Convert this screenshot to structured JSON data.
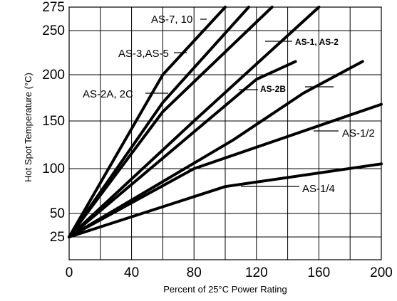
{
  "chart_data": {
    "type": "line",
    "xlabel": "Percent of 25°C Power Rating",
    "ylabel": "Hot Spot Temperature (°C)",
    "xlim": [
      0,
      200
    ],
    "ylim": [
      0,
      275
    ],
    "x_ticks": [
      "0",
      "40",
      "80",
      "120",
      "160",
      "200"
    ],
    "y_ticks": [
      "25",
      "50",
      "100",
      "150",
      "200",
      "250",
      "275"
    ],
    "grid": true,
    "series": [
      {
        "name": "AS-7, 10",
        "x": [
          0,
          60,
          100
        ],
        "y": [
          25,
          200,
          275
        ]
      },
      {
        "name": "AS-3, AS-5",
        "x": [
          0,
          60,
          115
        ],
        "y": [
          25,
          170,
          275
        ]
      },
      {
        "name": "AS-2A, 2C",
        "x": [
          0,
          60,
          130
        ],
        "y": [
          25,
          160,
          275
        ]
      },
      {
        "name": "AS-1, AS-2",
        "x": [
          0,
          80,
          160
        ],
        "y": [
          25,
          150,
          275
        ]
      },
      {
        "name": "AS-2B",
        "x": [
          0,
          120,
          145
        ],
        "y": [
          25,
          195,
          215
        ]
      },
      {
        "name": "AS-2B",
        "x": [
          0,
          105,
          150,
          188
        ],
        "y": [
          25,
          130,
          180,
          215
        ]
      },
      {
        "name": "AS-1/2",
        "x": [
          0,
          80,
          200
        ],
        "y": [
          25,
          100,
          168
        ]
      },
      {
        "name": "AS-1/4",
        "x": [
          0,
          100,
          200
        ],
        "y": [
          25,
          80,
          105
        ]
      }
    ],
    "labels": [
      {
        "text": "AS-7, 10",
        "bold": false,
        "series": 0
      },
      {
        "text": "AS-3,AS-5",
        "bold": false,
        "series": 1
      },
      {
        "text": "AS-2A, 2C",
        "bold": false,
        "series": 2
      },
      {
        "text": "AS-1, AS-2",
        "bold": true,
        "series": 3
      },
      {
        "text": "AS-2B",
        "bold": true,
        "series": 4
      },
      {
        "text": "AS-1/2",
        "bold": false,
        "series": 6
      },
      {
        "text": "AS-1/4",
        "bold": false,
        "series": 7
      }
    ]
  }
}
